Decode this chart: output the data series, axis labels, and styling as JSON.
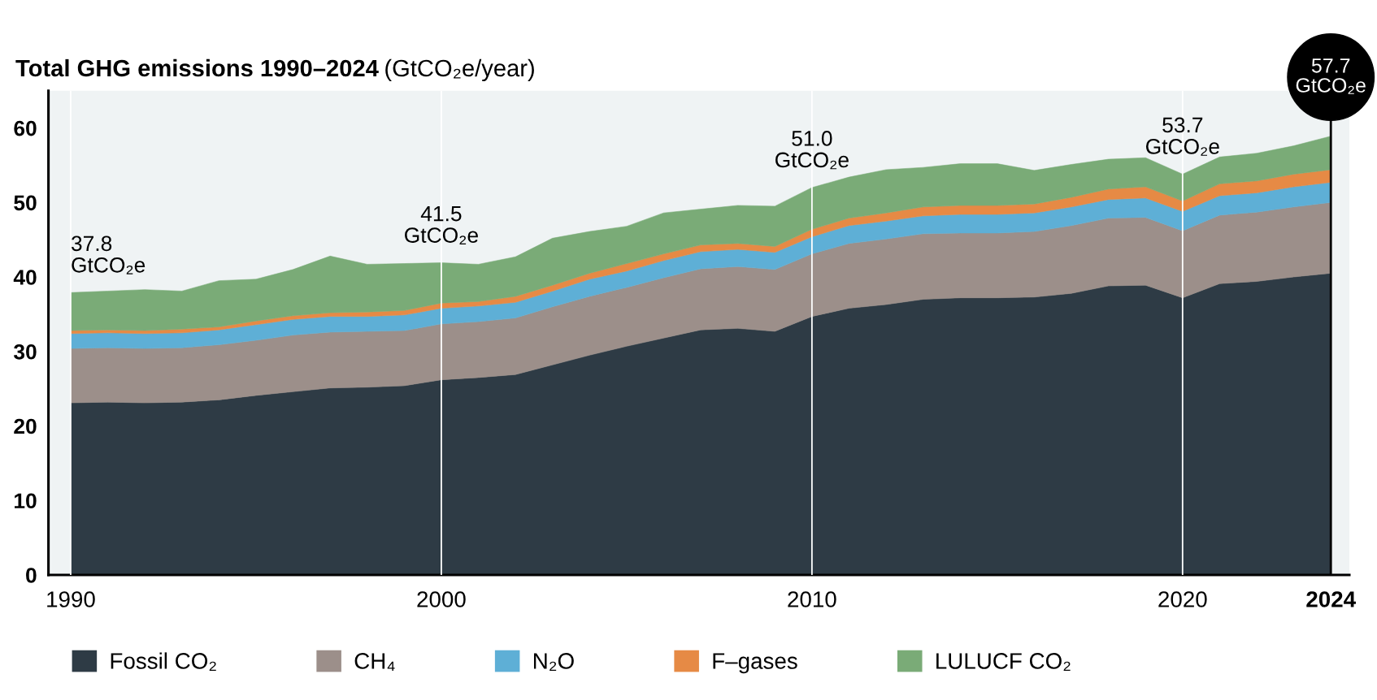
{
  "chart_data": {
    "type": "area",
    "stacked": true,
    "title": "Total GHG emissions 1990–2024",
    "ylabel": "(GtCO₂e/year)",
    "x": [
      1990,
      1991,
      1992,
      1993,
      1994,
      1995,
      1996,
      1997,
      1998,
      1999,
      2000,
      2001,
      2002,
      2003,
      2004,
      2005,
      2006,
      2007,
      2008,
      2009,
      2010,
      2011,
      2012,
      2013,
      2014,
      2015,
      2016,
      2017,
      2018,
      2019,
      2020,
      2021,
      2022,
      2023,
      2024
    ],
    "series": [
      {
        "name": "Fossil CO₂",
        "color": "#2e3b45",
        "values": [
          23.1,
          23.2,
          23.1,
          23.2,
          23.5,
          24.1,
          24.6,
          25.1,
          25.2,
          25.4,
          26.2,
          26.5,
          26.9,
          28.2,
          29.5,
          30.7,
          31.8,
          32.9,
          33.1,
          32.7,
          34.7,
          35.8,
          36.3,
          37.0,
          37.2,
          37.2,
          37.3,
          37.8,
          38.8,
          38.9,
          37.2,
          39.1,
          39.4,
          40.0,
          40.5
        ]
      },
      {
        "name": "CH₄",
        "color": "#9c8f8a",
        "values": [
          7.3,
          7.3,
          7.3,
          7.3,
          7.4,
          7.4,
          7.6,
          7.5,
          7.5,
          7.4,
          7.5,
          7.5,
          7.6,
          7.8,
          7.9,
          7.9,
          8.1,
          8.2,
          8.3,
          8.3,
          8.4,
          8.7,
          8.8,
          8.8,
          8.7,
          8.7,
          8.8,
          9.1,
          9.1,
          9.1,
          9.0,
          9.2,
          9.3,
          9.4,
          9.5
        ]
      },
      {
        "name": "N₂O",
        "color": "#5eafd6",
        "values": [
          2.0,
          2.0,
          2.0,
          2.0,
          2.0,
          2.1,
          2.1,
          2.1,
          2.0,
          2.1,
          2.1,
          2.1,
          2.1,
          2.1,
          2.3,
          2.2,
          2.3,
          2.3,
          2.3,
          2.3,
          2.3,
          2.4,
          2.4,
          2.4,
          2.5,
          2.5,
          2.5,
          2.5,
          2.5,
          2.6,
          2.6,
          2.6,
          2.6,
          2.7,
          2.7
        ]
      },
      {
        "name": "F–gases",
        "color": "#e68a45",
        "values": [
          0.4,
          0.4,
          0.4,
          0.5,
          0.4,
          0.5,
          0.5,
          0.5,
          0.6,
          0.6,
          0.7,
          0.6,
          0.8,
          0.8,
          0.8,
          1.0,
          0.9,
          0.9,
          0.8,
          0.8,
          1.0,
          1.0,
          1.1,
          1.2,
          1.2,
          1.2,
          1.2,
          1.3,
          1.4,
          1.5,
          1.4,
          1.6,
          1.6,
          1.7,
          1.7
        ]
      },
      {
        "name": "LULUCF CO₂",
        "color": "#7aab77",
        "values": [
          5.1,
          5.2,
          5.5,
          5.1,
          6.2,
          5.6,
          6.2,
          7.6,
          6.4,
          6.3,
          5.4,
          5.0,
          5.3,
          6.3,
          5.6,
          5.0,
          5.5,
          4.8,
          5.1,
          5.4,
          5.6,
          5.5,
          5.8,
          5.3,
          5.6,
          5.6,
          4.5,
          4.4,
          4.0,
          3.9,
          3.6,
          3.6,
          3.7,
          3.8,
          4.5
        ]
      }
    ],
    "xlim": [
      1989.4,
      2024.5
    ],
    "ylim": [
      0,
      65
    ],
    "xticks": [
      1990,
      2000,
      2010,
      2020,
      2024
    ],
    "yticks": [
      0,
      10,
      20,
      30,
      40,
      50,
      60
    ],
    "grid": "x",
    "legend": "bottom",
    "ref_lines": [
      {
        "axis": "x",
        "value": 2024,
        "label": "57.7\nGtCO₂e",
        "color": "#000000"
      }
    ],
    "annotations": [
      {
        "text": "37.8\nGtCO₂e",
        "x": 1990,
        "y": 37.9
      },
      {
        "text": "41.5\nGtCO₂e",
        "x": 2000,
        "y": 41.9
      },
      {
        "text": "51.0\nGtCO₂e",
        "x": 2010,
        "y": 52.0
      },
      {
        "text": "53.7\nGtCO₂e",
        "x": 2020,
        "y": 53.8
      }
    ]
  }
}
